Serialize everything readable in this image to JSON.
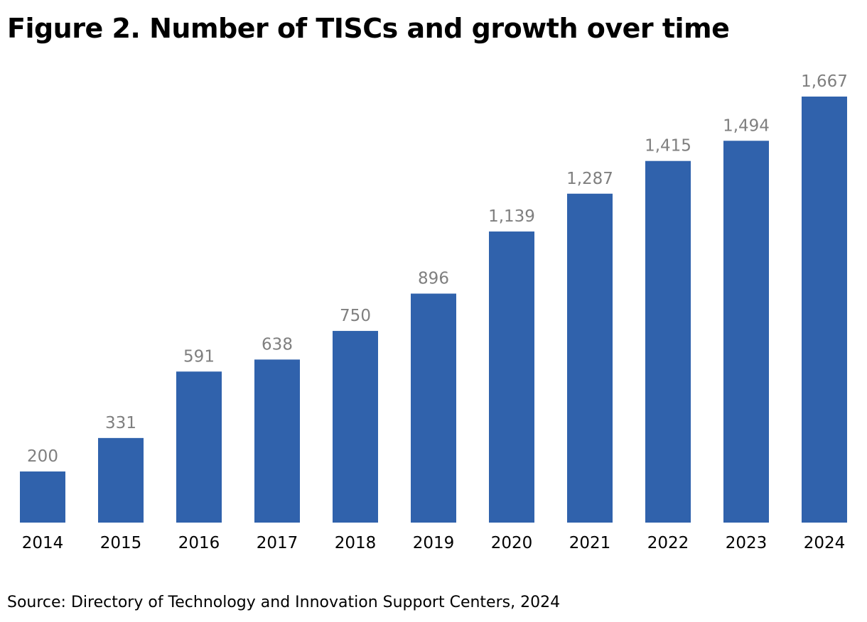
{
  "chart_data": {
    "type": "bar",
    "title": "Figure 2. Number of TISCs and growth over time",
    "categories": [
      "2014",
      "2015",
      "2016",
      "2017",
      "2018",
      "2019",
      "2020",
      "2021",
      "2022",
      "2023",
      "2024"
    ],
    "values": [
      200,
      331,
      591,
      638,
      750,
      896,
      1139,
      1287,
      1415,
      1494,
      1667
    ],
    "value_labels": [
      "200",
      "331",
      "591",
      "638",
      "750",
      "896",
      "1,139",
      "1,287",
      "1,415",
      "1,494",
      "1,667"
    ],
    "xlabel": "",
    "ylabel": "",
    "ylim": [
      0,
      1667
    ],
    "grid": false,
    "bar_color": "#3062ac",
    "label_color": "#7f7f7f",
    "source": "Source: Directory of Technology and Innovation Support Centers, 2024"
  }
}
